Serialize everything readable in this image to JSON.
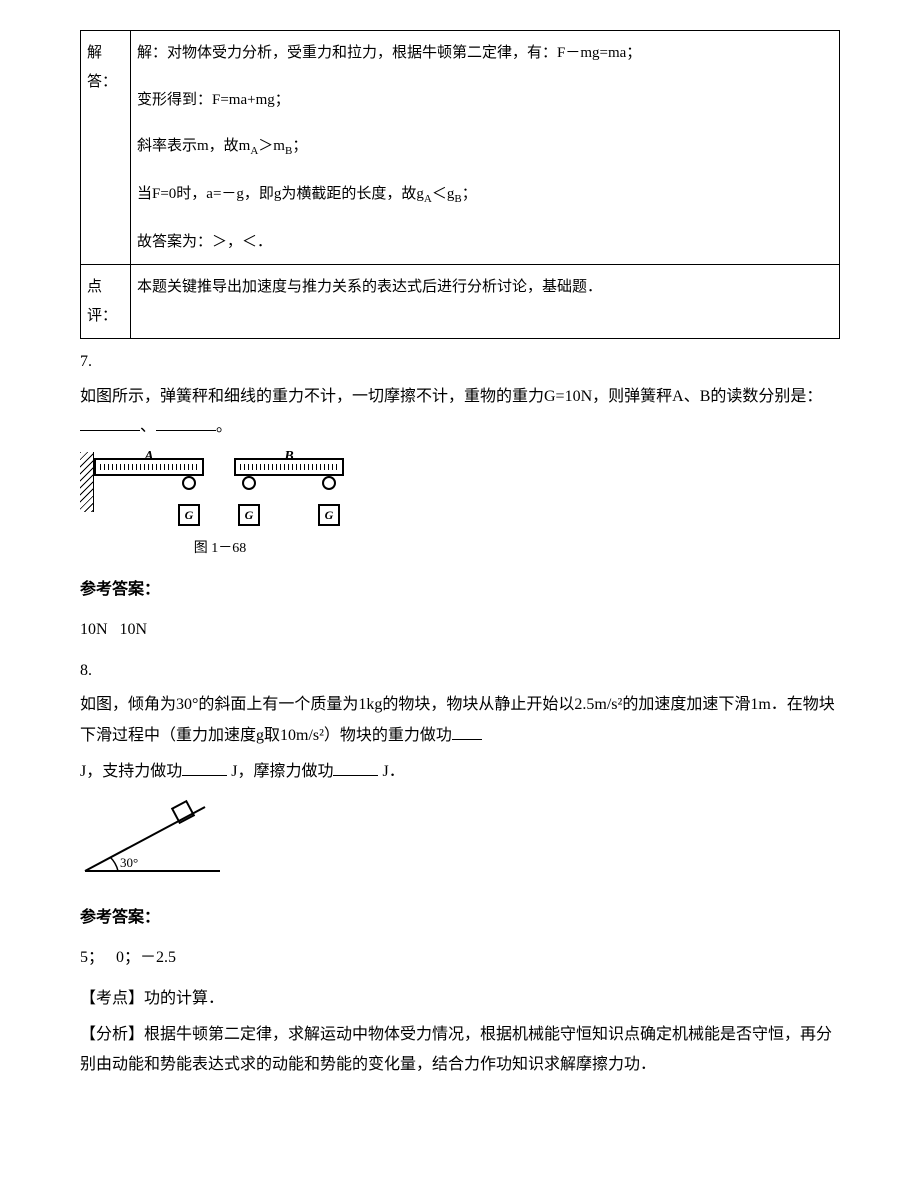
{
  "table": {
    "row1_label": "解答：",
    "row1_lines": [
      "解：对物体受力分析，受重力和拉力，根据牛顿第二定律，有：F－mg=ma；",
      "变形得到：F=ma+mg；",
      "斜率表示m，故m<sub>A</sub>＞m<sub>B</sub>；",
      "当F=0时，a=－g，即g为横截距的长度，故g<sub>A</sub>＜g<sub>B</sub>；",
      "故答案为：＞，＜．"
    ],
    "row2_label": "点评：",
    "row2_text": "本题关键推导出加速度与推力关系的表达式后进行分析讨论，基础题．"
  },
  "q7": {
    "num": "7.",
    "text_prefix": "如图所示，弹簧秤和细线的重力不计，一切摩擦不计，重物的重力G=10N，则弹簧秤A、B的读数分别是：",
    "separator": "、",
    "period": "。",
    "spring_label_a": "A",
    "spring_label_b": "B",
    "weight_label": "G",
    "caption": "图 1－68",
    "answer_header": "参考答案：",
    "answer": "10N   10N"
  },
  "q8": {
    "num": "8.",
    "text1": "如图，倾角为30°的斜面上有一个质量为1kg的物块，物块从静止开始以2.5m/s²的加速度加速下滑1m．在物块下滑过程中（重力加速度g取10m/s²）物块的重力做功",
    "text2_prefix": "J，支持力做功",
    "text2_mid": " J，摩擦力做功",
    "text2_suffix": " J．",
    "angle_label": "30°",
    "answer_header": "参考答案：",
    "answer": "5；   0；－2.5",
    "kp_label": "【考点】",
    "kp_text": "功的计算．",
    "an_label": "【分析】",
    "an_text": "根据牛顿第二定律，求解运动中物体受力情况，根据机械能守恒知识点确定机械能是否守恒，再分别由动能和势能表达式求的动能和势能的变化量，结合力作功知识求解摩擦力功．"
  },
  "colors": {
    "text": "#000000",
    "background": "#ffffff",
    "border": "#000000"
  }
}
